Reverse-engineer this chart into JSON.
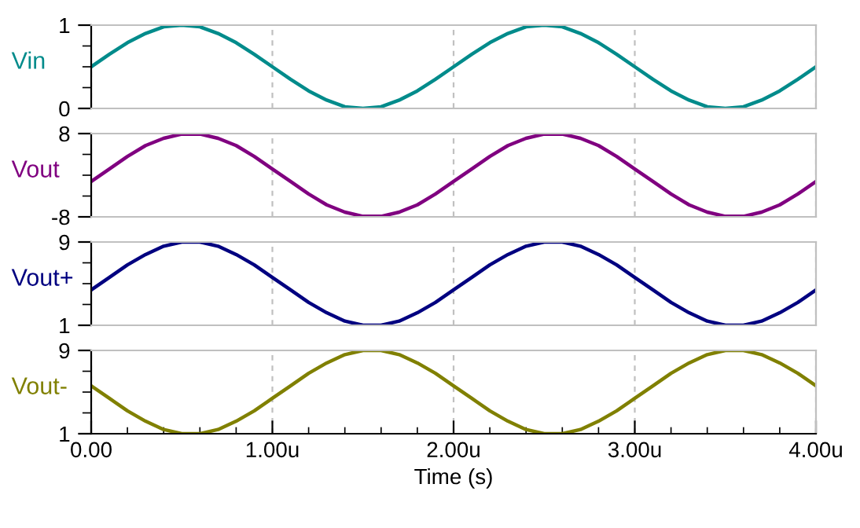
{
  "chart_data": [
    {
      "type": "line",
      "ylabel": "Vin",
      "x": [
        0,
        0.1,
        0.2,
        0.3,
        0.4,
        0.5,
        0.6,
        0.7,
        0.8,
        0.9,
        1.0,
        1.1,
        1.2,
        1.3,
        1.4,
        1.5,
        1.6,
        1.7,
        1.8,
        1.9,
        2.0,
        2.1,
        2.2,
        2.3,
        2.4,
        2.5,
        2.6,
        2.7,
        2.8,
        2.9,
        3.0,
        3.1,
        3.2,
        3.3,
        3.4,
        3.5,
        3.6,
        3.7,
        3.8,
        3.9,
        4.0
      ],
      "series": [
        {
          "color": "#008b8b",
          "values": [
            0.5,
            0.65,
            0.79,
            0.9,
            0.98,
            1.0,
            0.98,
            0.9,
            0.79,
            0.65,
            0.5,
            0.35,
            0.21,
            0.1,
            0.02,
            0.0,
            0.02,
            0.1,
            0.21,
            0.35,
            0.5,
            0.65,
            0.79,
            0.9,
            0.98,
            1.0,
            0.98,
            0.9,
            0.79,
            0.65,
            0.5,
            0.35,
            0.21,
            0.1,
            0.02,
            0.0,
            0.02,
            0.1,
            0.21,
            0.35,
            0.5
          ]
        }
      ],
      "xlim": [
        0,
        4
      ],
      "xticks": [
        0,
        1,
        2,
        3,
        4
      ],
      "ylim": [
        0,
        1
      ],
      "yticks": [
        0,
        {
          "value": 0.25,
          "label": null
        },
        {
          "value": 0.5,
          "label": null
        },
        {
          "value": 0.75,
          "label": null
        },
        1
      ],
      "grid": "x",
      "tick_labels": "y"
    },
    {
      "type": "line",
      "ylabel": "Vout",
      "x": [
        0,
        0.1,
        0.2,
        0.3,
        0.4,
        0.5,
        0.6,
        0.7,
        0.8,
        0.9,
        1.0,
        1.1,
        1.2,
        1.3,
        1.4,
        1.5,
        1.6,
        1.7,
        1.8,
        1.9,
        2.0,
        2.1,
        2.2,
        2.3,
        2.4,
        2.5,
        2.6,
        2.7,
        2.8,
        2.9,
        3.0,
        3.1,
        3.2,
        3.3,
        3.4,
        3.5,
        3.6,
        3.7,
        3.8,
        3.9,
        4.0
      ],
      "series": [
        {
          "color": "#800080",
          "values": [
            -1.2,
            1.2,
            3.6,
            5.7,
            7.1,
            7.9,
            7.9,
            7.1,
            5.7,
            3.6,
            1.2,
            -1.2,
            -3.6,
            -5.7,
            -7.1,
            -7.9,
            -7.9,
            -7.1,
            -5.7,
            -3.6,
            -1.2,
            1.2,
            3.6,
            5.7,
            7.1,
            7.9,
            7.9,
            7.1,
            5.7,
            3.6,
            1.2,
            -1.2,
            -3.6,
            -5.7,
            -7.1,
            -7.9,
            -7.9,
            -7.1,
            -5.7,
            -3.6,
            -1.2
          ]
        }
      ],
      "xlim": [
        0,
        4
      ],
      "xticks": [
        0,
        1,
        2,
        3,
        4
      ],
      "ylim": [
        -8,
        8
      ],
      "yticks": [
        -8,
        {
          "value": -4,
          "label": null
        },
        {
          "value": 0,
          "label": null
        },
        {
          "value": 4,
          "label": null
        },
        8
      ],
      "grid": "x",
      "tick_labels": "y"
    },
    {
      "type": "line",
      "ylabel": "Vout+",
      "x": [
        0,
        0.1,
        0.2,
        0.3,
        0.4,
        0.5,
        0.6,
        0.7,
        0.8,
        0.9,
        1.0,
        1.1,
        1.2,
        1.3,
        1.4,
        1.5,
        1.6,
        1.7,
        1.8,
        1.9,
        2.0,
        2.1,
        2.2,
        2.3,
        2.4,
        2.5,
        2.6,
        2.7,
        2.8,
        2.9,
        3.0,
        3.1,
        3.2,
        3.3,
        3.4,
        3.5,
        3.6,
        3.7,
        3.8,
        3.9,
        4.0
      ],
      "series": [
        {
          "color": "#000080",
          "values": [
            4.4,
            5.6,
            6.8,
            7.8,
            8.6,
            9.0,
            9.0,
            8.6,
            7.8,
            6.8,
            5.6,
            4.4,
            3.2,
            2.2,
            1.4,
            1.0,
            1.0,
            1.4,
            2.2,
            3.2,
            4.4,
            5.6,
            6.8,
            7.8,
            8.6,
            9.0,
            9.0,
            8.6,
            7.8,
            6.8,
            5.6,
            4.4,
            3.2,
            2.2,
            1.4,
            1.0,
            1.0,
            1.4,
            2.2,
            3.2,
            4.4
          ]
        }
      ],
      "xlim": [
        0,
        4
      ],
      "xticks": [
        0,
        1,
        2,
        3,
        4
      ],
      "ylim": [
        1,
        9
      ],
      "yticks": [
        1,
        {
          "value": 3,
          "label": null
        },
        {
          "value": 5,
          "label": null
        },
        {
          "value": 7,
          "label": null
        },
        9
      ],
      "grid": "x",
      "tick_labels": "y"
    },
    {
      "type": "line",
      "ylabel": "Vout-",
      "xlabel": "Time (s)",
      "x": [
        0,
        0.1,
        0.2,
        0.3,
        0.4,
        0.5,
        0.6,
        0.7,
        0.8,
        0.9,
        1.0,
        1.1,
        1.2,
        1.3,
        1.4,
        1.5,
        1.6,
        1.7,
        1.8,
        1.9,
        2.0,
        2.1,
        2.2,
        2.3,
        2.4,
        2.5,
        2.6,
        2.7,
        2.8,
        2.9,
        3.0,
        3.1,
        3.2,
        3.3,
        3.4,
        3.5,
        3.6,
        3.7,
        3.8,
        3.9,
        4.0
      ],
      "series": [
        {
          "color": "#808000",
          "values": [
            5.6,
            4.4,
            3.2,
            2.2,
            1.4,
            1.0,
            1.0,
            1.4,
            2.2,
            3.2,
            4.4,
            5.6,
            6.8,
            7.8,
            8.6,
            9.0,
            9.0,
            8.6,
            7.8,
            6.8,
            5.6,
            4.4,
            3.2,
            2.2,
            1.4,
            1.0,
            1.0,
            1.4,
            2.2,
            3.2,
            4.4,
            5.6,
            6.8,
            7.8,
            8.6,
            9.0,
            9.0,
            8.6,
            7.8,
            6.8,
            5.6
          ]
        }
      ],
      "xlim": [
        0,
        4
      ],
      "xticks": [
        {
          "value": 0,
          "label": "0.00"
        },
        {
          "value": 0.2,
          "label": null
        },
        {
          "value": 0.4,
          "label": null
        },
        {
          "value": 0.6,
          "label": null
        },
        {
          "value": 0.8,
          "label": null
        },
        {
          "value": 1,
          "label": "1.00u"
        },
        {
          "value": 1.2,
          "label": null
        },
        {
          "value": 1.4,
          "label": null
        },
        {
          "value": 1.6,
          "label": null
        },
        {
          "value": 1.8,
          "label": null
        },
        {
          "value": 2,
          "label": "2.00u"
        },
        {
          "value": 2.2,
          "label": null
        },
        {
          "value": 2.4,
          "label": null
        },
        {
          "value": 2.6,
          "label": null
        },
        {
          "value": 2.8,
          "label": null
        },
        {
          "value": 3,
          "label": "3.00u"
        },
        {
          "value": 3.2,
          "label": null
        },
        {
          "value": 3.4,
          "label": null
        },
        {
          "value": 3.6,
          "label": null
        },
        {
          "value": 3.8,
          "label": null
        },
        {
          "value": 4,
          "label": "4.00u"
        }
      ],
      "ylim": [
        1,
        9
      ],
      "yticks": [
        1,
        {
          "value": 3,
          "label": null
        },
        {
          "value": 5,
          "label": null
        },
        {
          "value": 7,
          "label": null
        },
        9
      ],
      "grid": "x"
    }
  ]
}
